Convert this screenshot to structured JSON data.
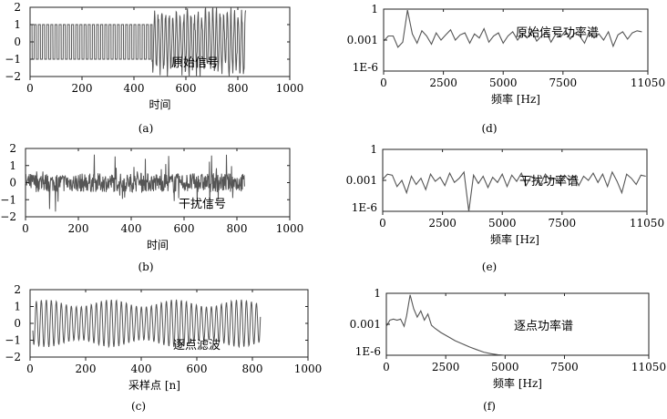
{
  "chart_data": [
    {
      "id": "a",
      "type": "line",
      "caption": "(a)",
      "inner_label": "原始信号",
      "xlabel": "时间",
      "xlim": [
        0,
        1000
      ],
      "ylim": [
        -2,
        2
      ],
      "xticks": [
        0,
        200,
        400,
        600,
        800,
        1000
      ],
      "yticks": [
        -2,
        -1,
        0,
        1,
        2
      ],
      "series": [
        {
          "segments": [
            {
              "shape": "square",
              "x_start": 0,
              "x_end": 470,
              "amplitude": 1,
              "period": 16
            },
            {
              "shape": "noisy-sine",
              "x_start": 470,
              "x_end": 830,
              "amplitude": 1.6,
              "period": 14,
              "noise": 0.45
            }
          ]
        }
      ]
    },
    {
      "id": "b",
      "type": "line",
      "caption": "(b)",
      "inner_label": "干扰信号",
      "xlabel": "时间",
      "xlim": [
        0,
        1000
      ],
      "ylim": [
        -2,
        2
      ],
      "xticks": [
        0,
        200,
        400,
        600,
        800,
        1000
      ],
      "yticks": [
        -2,
        -1,
        0,
        1,
        2
      ],
      "series": [
        {
          "segments": [
            {
              "shape": "noise",
              "x_start": 0,
              "x_end": 830,
              "amplitude": 0.55,
              "spike": 1.7
            }
          ]
        }
      ]
    },
    {
      "id": "c",
      "type": "line",
      "caption": "(c)",
      "inner_label": "逐点滤波",
      "xlabel": "采样点 [n]",
      "xlim": [
        0,
        1000
      ],
      "ylim": [
        -2,
        2
      ],
      "xticks": [
        0,
        200,
        400,
        600,
        800,
        1000
      ],
      "yticks": [
        -2,
        -1,
        0,
        1,
        2
      ],
      "series": [
        {
          "segments": [
            {
              "shape": "sine",
              "x_start": 10,
              "x_end": 830,
              "amplitude": 1.2,
              "period": 18,
              "amp_jitter": 0.35
            }
          ]
        }
      ]
    },
    {
      "id": "d",
      "type": "line",
      "scale": "log",
      "caption": "(d)",
      "inner_label": "原始信号功率谱",
      "xlabel": "频率 [Hz]",
      "xlim": [
        0,
        11050
      ],
      "ylim_log10": [
        -6,
        0
      ],
      "xticks": [
        0,
        2500,
        5000,
        7500,
        11050
      ],
      "yticks_label": [
        "1",
        "0.001",
        "1E-6"
      ],
      "series": [
        {
          "points": [
            [
              0,
              -3.1
            ],
            [
              200,
              -2.6
            ],
            [
              400,
              -2.6
            ],
            [
              600,
              -3.7
            ],
            [
              800,
              -3.2
            ],
            [
              1000,
              -0.1
            ],
            [
              1200,
              -2.4
            ],
            [
              1400,
              -3.3
            ],
            [
              1600,
              -2.1
            ],
            [
              1800,
              -2.6
            ],
            [
              2000,
              -3.4
            ],
            [
              2200,
              -2.3
            ],
            [
              2400,
              -3.0
            ],
            [
              2600,
              -2.5
            ],
            [
              2800,
              -2.0
            ],
            [
              3000,
              -3.0
            ],
            [
              3200,
              -2.5
            ],
            [
              3400,
              -2.3
            ],
            [
              3600,
              -3.3
            ],
            [
              3800,
              -2.4
            ],
            [
              4000,
              -2.8
            ],
            [
              4200,
              -1.9
            ],
            [
              4400,
              -3.2
            ],
            [
              4600,
              -2.6
            ],
            [
              4800,
              -2.3
            ],
            [
              5000,
              -3.3
            ],
            [
              5200,
              -2.6
            ],
            [
              5400,
              -2.2
            ],
            [
              5600,
              -3.0
            ],
            [
              5800,
              -2.4
            ],
            [
              6000,
              -2.8
            ],
            [
              6200,
              -2.1
            ],
            [
              6400,
              -3.1
            ],
            [
              6600,
              -2.6
            ],
            [
              6800,
              -2.2
            ],
            [
              7000,
              -3.2
            ],
            [
              7200,
              -2.4
            ],
            [
              7400,
              -2.7
            ],
            [
              7600,
              -2.1
            ],
            [
              7800,
              -2.9
            ],
            [
              8000,
              -2.3
            ],
            [
              8200,
              -2.6
            ],
            [
              8400,
              -3.3
            ],
            [
              8600,
              -2.2
            ],
            [
              8800,
              -2.8
            ],
            [
              9000,
              -2.4
            ],
            [
              9200,
              -3.0
            ],
            [
              9400,
              -2.2
            ],
            [
              9600,
              -3.6
            ],
            [
              9800,
              -2.5
            ],
            [
              10000,
              -2.2
            ],
            [
              10200,
              -2.9
            ],
            [
              10400,
              -2.3
            ],
            [
              10600,
              -2.1
            ],
            [
              10800,
              -2.2
            ]
          ]
        }
      ]
    },
    {
      "id": "e",
      "type": "line",
      "scale": "log",
      "caption": "(e)",
      "inner_label": "干扰功率谱",
      "xlabel": "频率 [Hz]",
      "xlim": [
        0,
        11050
      ],
      "ylim_log10": [
        -6,
        0
      ],
      "xticks": [
        0,
        2500,
        5000,
        7500,
        11050
      ],
      "yticks_label": [
        "1",
        "0.001",
        "1E-6"
      ],
      "series": [
        {
          "points": [
            [
              0,
              -2.9
            ],
            [
              200,
              -2.4
            ],
            [
              400,
              -2.5
            ],
            [
              600,
              -3.6
            ],
            [
              800,
              -3.0
            ],
            [
              1000,
              -4.2
            ],
            [
              1200,
              -2.6
            ],
            [
              1400,
              -3.4
            ],
            [
              1600,
              -2.8
            ],
            [
              1800,
              -3.9
            ],
            [
              2000,
              -2.4
            ],
            [
              2200,
              -3.1
            ],
            [
              2400,
              -2.7
            ],
            [
              2600,
              -3.5
            ],
            [
              2800,
              -2.3
            ],
            [
              3000,
              -3.2
            ],
            [
              3200,
              -2.8
            ],
            [
              3400,
              -2.2
            ],
            [
              3600,
              -6.0
            ],
            [
              3800,
              -2.5
            ],
            [
              4000,
              -3.3
            ],
            [
              4200,
              -2.6
            ],
            [
              4400,
              -3.7
            ],
            [
              4600,
              -2.7
            ],
            [
              4800,
              -3.2
            ],
            [
              5000,
              -2.4
            ],
            [
              5200,
              -3.6
            ],
            [
              5400,
              -2.5
            ],
            [
              5600,
              -3.1
            ],
            [
              5800,
              -2.3
            ],
            [
              6000,
              -3.5
            ],
            [
              6200,
              -2.6
            ],
            [
              6400,
              -2.9
            ],
            [
              6600,
              -3.4
            ],
            [
              6800,
              -2.4
            ],
            [
              7000,
              -3.0
            ],
            [
              7200,
              -2.8
            ],
            [
              7400,
              -3.3
            ],
            [
              7600,
              -2.5
            ],
            [
              7800,
              -3.0
            ],
            [
              8000,
              -2.6
            ],
            [
              8200,
              -3.5
            ],
            [
              8400,
              -2.6
            ],
            [
              8600,
              -3.0
            ],
            [
              8800,
              -2.3
            ],
            [
              9000,
              -3.2
            ],
            [
              9200,
              -2.4
            ],
            [
              9400,
              -3.6
            ],
            [
              9600,
              -2.2
            ],
            [
              9800,
              -3.1
            ],
            [
              10000,
              -4.2
            ],
            [
              10200,
              -2.4
            ],
            [
              10400,
              -2.8
            ],
            [
              10600,
              -3.4
            ],
            [
              10800,
              -2.5
            ],
            [
              11000,
              -2.6
            ]
          ]
        }
      ]
    },
    {
      "id": "f",
      "type": "line",
      "scale": "log",
      "caption": "(f)",
      "inner_label": "逐点功率谱",
      "xlabel": "频率 [Hz]",
      "xlim": [
        0,
        11050
      ],
      "ylim_log10": [
        -6,
        0
      ],
      "xticks": [
        0,
        2500,
        5000,
        7500,
        11050
      ],
      "yticks_label": [
        "1",
        "0.001",
        "1E-6"
      ],
      "series": [
        {
          "points": [
            [
              0,
              -3.2
            ],
            [
              150,
              -2.6
            ],
            [
              300,
              -2.5
            ],
            [
              450,
              -2.6
            ],
            [
              600,
              -2.5
            ],
            [
              750,
              -3.2
            ],
            [
              850,
              -2.2
            ],
            [
              1000,
              -0.15
            ],
            [
              1150,
              -1.5
            ],
            [
              1300,
              -2.3
            ],
            [
              1450,
              -1.7
            ],
            [
              1600,
              -2.6
            ],
            [
              1750,
              -2.0
            ],
            [
              1900,
              -3.1
            ],
            [
              2050,
              -3.4
            ],
            [
              2300,
              -3.8
            ],
            [
              2600,
              -4.2
            ],
            [
              2900,
              -4.6
            ],
            [
              3200,
              -4.9
            ],
            [
              3500,
              -5.2
            ],
            [
              3800,
              -5.45
            ],
            [
              4100,
              -5.7
            ],
            [
              4400,
              -5.85
            ],
            [
              4700,
              -5.95
            ],
            [
              5000,
              -6.0
            ]
          ]
        }
      ]
    }
  ]
}
